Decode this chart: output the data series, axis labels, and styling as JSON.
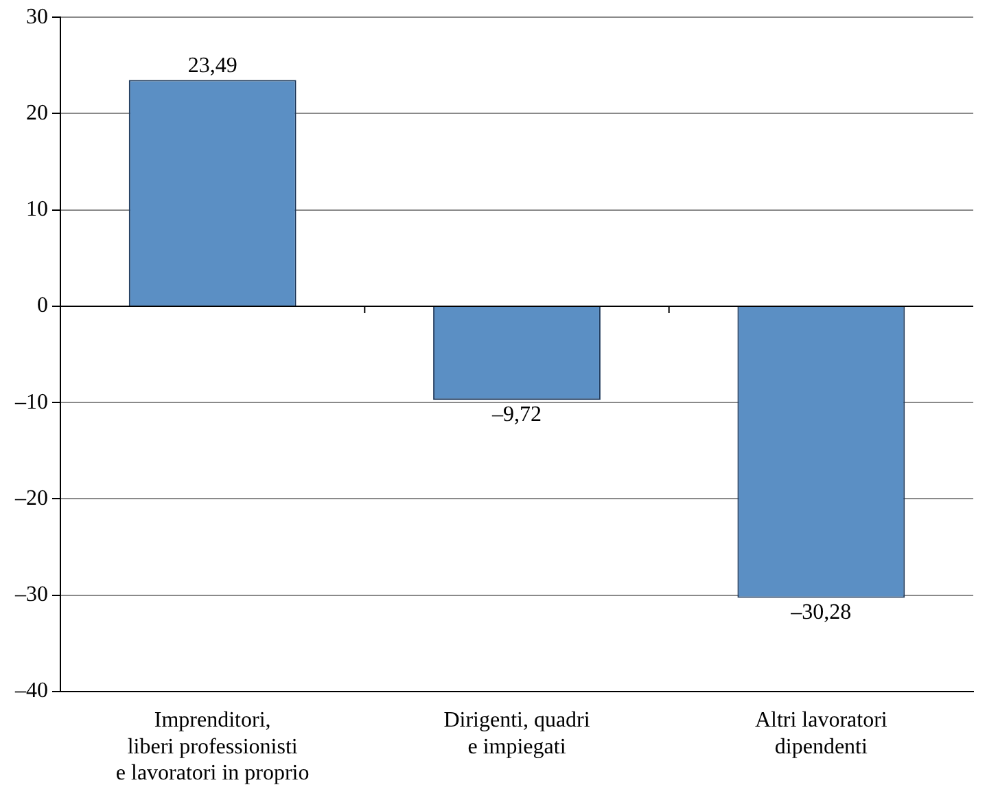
{
  "chart_data": {
    "type": "bar",
    "categories": [
      "Imprenditori,\nliberi professionisti\ne lavoratori in proprio",
      "Dirigenti, quadri\ne impiegati",
      "Altri lavoratori\ndipendenti"
    ],
    "values": [
      23.49,
      -9.72,
      -30.28
    ],
    "value_labels": [
      "23,49",
      "–9,72",
      "–30,28"
    ],
    "color": "#5b8fc4",
    "ylim": [
      -40,
      30
    ],
    "yticks": [
      {
        "value": -40,
        "label": "–40"
      },
      {
        "value": -30,
        "label": "–30"
      },
      {
        "value": -20,
        "label": "–20"
      },
      {
        "value": -10,
        "label": "–10"
      },
      0,
      10,
      20,
      30
    ],
    "grid": "y",
    "legend": false
  }
}
